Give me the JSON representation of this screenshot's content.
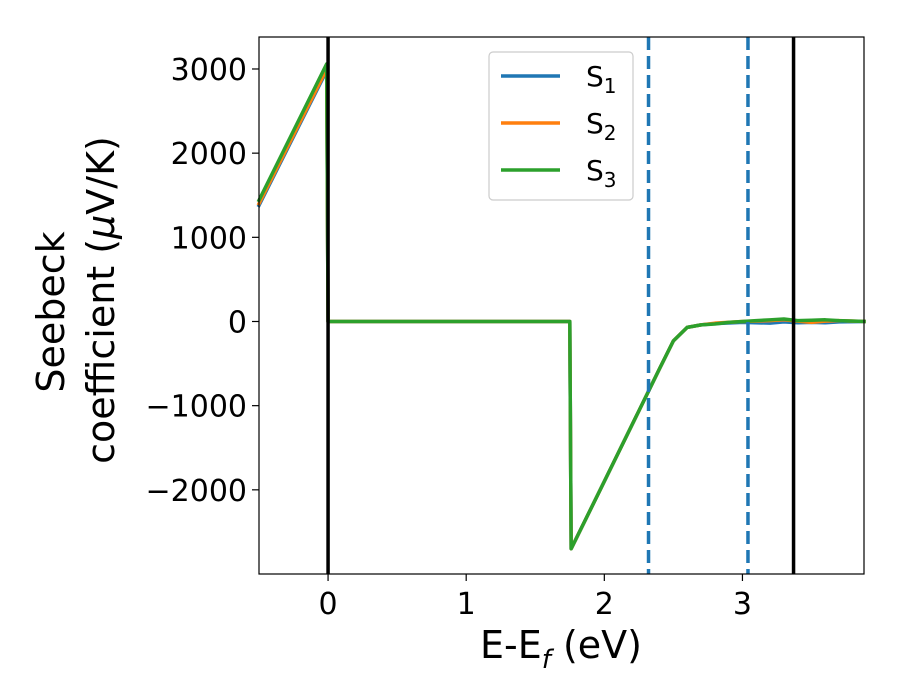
{
  "chart_data": {
    "type": "line",
    "xlabel": "E-E_f (eV)",
    "xlabel_parts": {
      "base": "E-E",
      "sub": "f",
      "tail": " (eV)"
    },
    "ylabel": "Seebeck coefficient (μV/K)",
    "ylabel_lines": {
      "line1": "Seebeck",
      "line2_pre": "coefficient  (",
      "mu": "μ",
      "line2_post": "V/K)"
    },
    "xlim": [
      -0.5,
      3.88
    ],
    "ylim": [
      -3000,
      3380
    ],
    "x_ticks": [
      0,
      1,
      2,
      3
    ],
    "x_tick_labels": [
      "0",
      "1",
      "2",
      "3"
    ],
    "y_ticks": [
      -2000,
      -1000,
      0,
      1000,
      2000,
      3000
    ],
    "y_tick_labels": [
      "−2000",
      "−1000",
      "0",
      "1000",
      "2000",
      "3000"
    ],
    "legend_position": "upper-center",
    "legend": [
      {
        "base": "S",
        "sub": "1",
        "color": "#1f77b4"
      },
      {
        "base": "S",
        "sub": "2",
        "color": "#ff7f0e"
      },
      {
        "base": "S",
        "sub": "3",
        "color": "#2ca02c"
      }
    ],
    "vlines": [
      {
        "x": 0.0,
        "style": "solid",
        "color": "#000000"
      },
      {
        "x": 2.32,
        "style": "dashed",
        "color": "#1f77b4"
      },
      {
        "x": 3.04,
        "style": "dashed",
        "color": "#1f77b4"
      },
      {
        "x": 3.37,
        "style": "solid",
        "color": "#000000"
      }
    ],
    "series": [
      {
        "name": "S₁",
        "color": "#1f77b4",
        "x": [
          -0.5,
          -0.01,
          0.0,
          0.02,
          1.75,
          1.76,
          2.0,
          2.2,
          2.4,
          2.5,
          2.6,
          2.7,
          2.8,
          3.0,
          3.2,
          3.3,
          3.4,
          3.5,
          3.6,
          3.7,
          3.88
        ],
        "y": [
          1380,
          2980,
          0,
          0,
          0,
          -2700,
          -1900,
          -1230,
          -560,
          -230,
          -70,
          -40,
          -25,
          -10,
          -20,
          -5,
          -15,
          -10,
          -15,
          -5,
          0
        ]
      },
      {
        "name": "S₂",
        "color": "#ff7f0e",
        "x": [
          -0.5,
          -0.01,
          0.0,
          0.02,
          1.75,
          1.76,
          2.0,
          2.2,
          2.4,
          2.5,
          2.6,
          2.7,
          2.8,
          3.0,
          3.2,
          3.3,
          3.4,
          3.5,
          3.6,
          3.7,
          3.88
        ],
        "y": [
          1400,
          3000,
          0,
          0,
          0,
          -2700,
          -1900,
          -1230,
          -560,
          -230,
          -70,
          -40,
          -20,
          0,
          10,
          20,
          5,
          -10,
          5,
          10,
          0
        ]
      },
      {
        "name": "S₃",
        "color": "#2ca02c",
        "x": [
          -0.5,
          -0.01,
          0.0,
          0.02,
          1.75,
          1.76,
          2.0,
          2.2,
          2.4,
          2.5,
          2.6,
          2.7,
          2.8,
          2.9,
          3.0,
          3.1,
          3.2,
          3.3,
          3.4,
          3.5,
          3.6,
          3.7,
          3.88
        ],
        "y": [
          1440,
          3060,
          0,
          0,
          0,
          -2700,
          -1900,
          -1230,
          -560,
          -230,
          -70,
          -40,
          -30,
          -10,
          0,
          10,
          20,
          30,
          10,
          15,
          20,
          10,
          0
        ]
      }
    ]
  }
}
